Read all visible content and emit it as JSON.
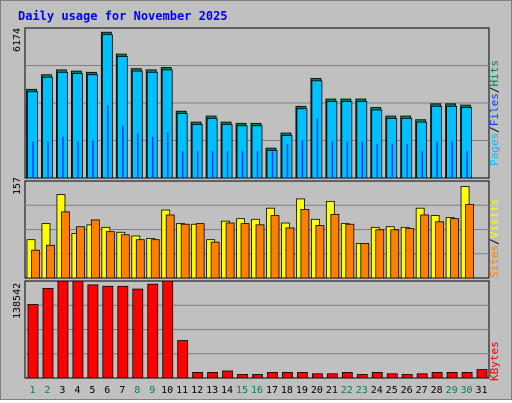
{
  "chart_data": {
    "type": "bar",
    "title": "Daily usage for November 2025",
    "days": [
      "1",
      "2",
      "3",
      "4",
      "5",
      "6",
      "7",
      "8",
      "9",
      "10",
      "11",
      "12",
      "13",
      "14",
      "15",
      "16",
      "17",
      "18",
      "19",
      "20",
      "21",
      "22",
      "23",
      "24",
      "25",
      "26",
      "27",
      "28",
      "29",
      "30",
      "31"
    ],
    "weekend_days": [
      "1",
      "8",
      "15",
      "22",
      "29"
    ],
    "holiday_days": [
      "2",
      "9",
      "16",
      "23",
      "30"
    ],
    "panels": {
      "hits": {
        "max_label": "6174",
        "max_value": 6174,
        "labels": [
          "Pages",
          "Files",
          "Hits"
        ],
        "hits": [
          3650,
          4250,
          4450,
          4400,
          4350,
          6000,
          5100,
          4500,
          4450,
          4550,
          2750,
          2300,
          2550,
          2300,
          2250,
          2250,
          1230,
          1850,
          2950,
          4100,
          3250,
          3250,
          3250,
          2900,
          2550,
          2550,
          2400,
          3050,
          3050,
          3000,
          0
        ],
        "files": [
          3550,
          4150,
          4350,
          4300,
          4250,
          5900,
          5000,
          4400,
          4350,
          4450,
          2650,
          2200,
          2450,
          2200,
          2150,
          2150,
          1130,
          1750,
          2850,
          4000,
          3150,
          3150,
          3150,
          2800,
          2450,
          2450,
          2300,
          2950,
          2950,
          2900,
          0
        ],
        "pages": [
          1500,
          1500,
          1700,
          1500,
          1550,
          3000,
          2150,
          1850,
          1700,
          1900,
          1100,
          1100,
          1100,
          1100,
          1100,
          1100,
          1100,
          1400,
          1550,
          2450,
          1500,
          1500,
          1500,
          1400,
          1400,
          1400,
          1100,
          1500,
          1500,
          1100,
          0
        ]
      },
      "visits": {
        "max_label": "157",
        "max_value": 157,
        "labels": [
          "Sites",
          "Visits"
        ],
        "visits": [
          62,
          88,
          135,
          72,
          86,
          82,
          74,
          68,
          64,
          110,
          88,
          87,
          62,
          92,
          96,
          95,
          113,
          89,
          128,
          95,
          124,
          88,
          56,
          82,
          83,
          82,
          113,
          101,
          98,
          148,
          0
        ],
        "sites": [
          45,
          53,
          107,
          83,
          94,
          75,
          70,
          62,
          62,
          102,
          87,
          88,
          58,
          89,
          88,
          86,
          101,
          81,
          111,
          85,
          103,
          87,
          56,
          78,
          78,
          80,
          102,
          91,
          96,
          119,
          0
        ]
      },
      "kbytes": {
        "max_label": "138542",
        "max_value": 138542,
        "labels": [
          "KBytes"
        ],
        "kbytes": [
          105000,
          128000,
          138500,
          138500,
          133000,
          131000,
          131000,
          127000,
          134000,
          138500,
          53500,
          8000,
          8000,
          10000,
          5000,
          5000,
          8000,
          8000,
          8000,
          6000,
          6000,
          8000,
          5000,
          8000,
          6000,
          5000,
          6000,
          8000,
          8000,
          8000,
          12000
        ]
      }
    }
  },
  "colors": {
    "title": "#0000ff",
    "hits": "#00805c",
    "files": "#0040ff",
    "pages": "#00c0ff",
    "visits": "#ffff00",
    "sites": "#ff8000",
    "kbytes": "#ff0000",
    "weekend": "#00805c",
    "normal_day": "#000000"
  }
}
